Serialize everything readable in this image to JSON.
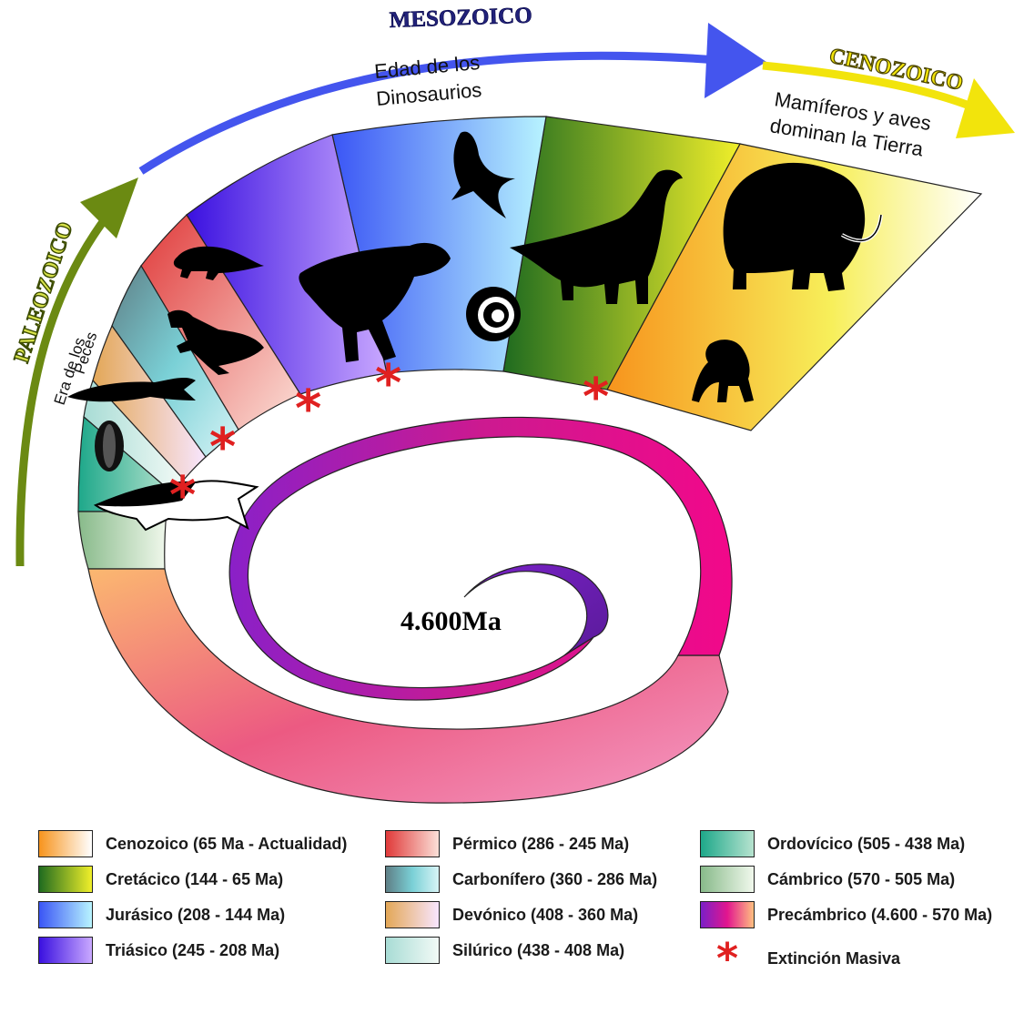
{
  "eras": {
    "paleozoico": "PALEOZOICO",
    "mesozoico": "MESOZOICO",
    "cenozoico": "CENOZOICO"
  },
  "captions": {
    "peces_line1": "Era de los",
    "peces_line2": "Peces",
    "dino_line1": "Edad de los",
    "dino_line2": "Dinosaurios",
    "mam_line1": "Mamíferos y aves",
    "mam_line2": "dominan la Tierra"
  },
  "center_label": "4.600Ma",
  "colors": {
    "paleozoico_arrow": "#6b8a12",
    "mesozoico_arrow": "#4455ee",
    "cenozoico_arrow": "#f2e40c",
    "extinction": "#e02020"
  },
  "legend": [
    {
      "label": "Cenozoico (65 Ma - Actualidad)",
      "from": "#f7941d",
      "to": "#ffffff"
    },
    {
      "label": "Cretácico (144 - 65 Ma)",
      "from": "#1f6b1f",
      "to": "#f0ef2a"
    },
    {
      "label": "Jurásico (208 - 144 Ma)",
      "from": "#3a55f5",
      "to": "#b8f4ff"
    },
    {
      "label": "Triásico (245 - 208 Ma)",
      "from": "#3a10e0",
      "to": "#c9a8ff"
    },
    {
      "label": "Pérmico (286 - 245 Ma)",
      "from": "#e03a3a",
      "to": "#fbe0d8"
    },
    {
      "label": "Carbonífero (360 - 286 Ma)",
      "from": "#5f7f86",
      "to": "#d8f4f6"
    },
    {
      "label": "Devónico (408 - 360 Ma)",
      "from": "#e3a757",
      "to": "#f8e6ff"
    },
    {
      "label": "Silúrico (438 - 408 Ma)",
      "from": "#a8dcd5",
      "to": "#f2faf6"
    },
    {
      "label": "Ordovícico (505 - 438 Ma)",
      "from": "#1ea88a",
      "to": "#b7e3cf"
    },
    {
      "label": "Cámbrico (570 - 505 Ma)",
      "from": "#88ba8a",
      "to": "#f0f8ec"
    },
    {
      "label": "Precámbrico (4.600 - 570 Ma)",
      "from": "#7a1fc8",
      "to": "#ffbf80"
    }
  ],
  "extinction_label": "Extinción Masiva",
  "extinction_icon": "asterisk-icon"
}
